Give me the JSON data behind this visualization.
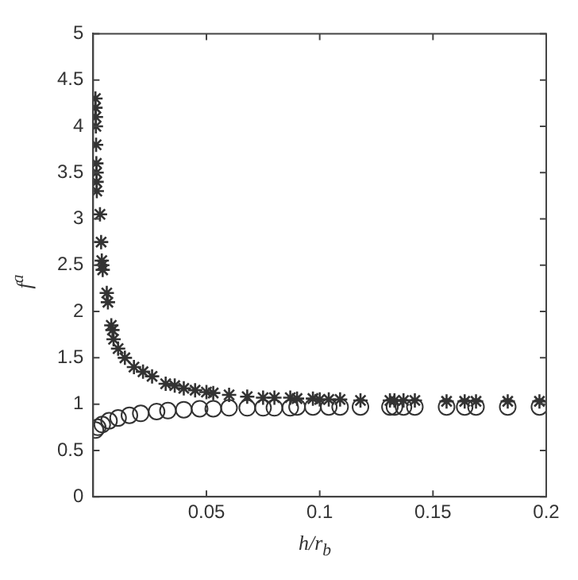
{
  "chart_data": {
    "type": "scatter",
    "xlabel": "h/r$_{b}$",
    "ylabel": "f$^{a}$",
    "xlim": [
      0,
      0.2
    ],
    "ylim": [
      0,
      5
    ],
    "xticks": [
      0.05,
      0.1,
      0.15,
      0.2
    ],
    "yticks": [
      0,
      0.5,
      1,
      1.5,
      2,
      2.5,
      3,
      3.5,
      4,
      4.5,
      5
    ],
    "grid": false,
    "legend": false,
    "series": [
      {
        "color": "#333333",
        "marker": "cross",
        "x": [
          0.001,
          0.001,
          0.0012,
          0.0012,
          0.0013,
          0.0014,
          0.0015,
          0.0015,
          0.0016,
          0.003,
          0.0035,
          0.0038,
          0.004,
          0.0042,
          0.006,
          0.0065,
          0.008,
          0.0085,
          0.009,
          0.011,
          0.014,
          0.018,
          0.022,
          0.026,
          0.032,
          0.036,
          0.04,
          0.045,
          0.05,
          0.053,
          0.06,
          0.068,
          0.075,
          0.08,
          0.087,
          0.09,
          0.097,
          0.1,
          0.104,
          0.109,
          0.118,
          0.131,
          0.133,
          0.137,
          0.142,
          0.156,
          0.164,
          0.169,
          0.183,
          0.197
        ],
        "values": [
          4.3,
          4.2,
          4.1,
          4.0,
          3.8,
          3.6,
          3.5,
          3.4,
          3.3,
          3.05,
          2.75,
          2.55,
          2.5,
          2.45,
          2.2,
          2.1,
          1.85,
          1.8,
          1.7,
          1.6,
          1.5,
          1.4,
          1.35,
          1.3,
          1.22,
          1.2,
          1.17,
          1.15,
          1.13,
          1.12,
          1.1,
          1.08,
          1.07,
          1.07,
          1.07,
          1.06,
          1.06,
          1.05,
          1.05,
          1.05,
          1.04,
          1.04,
          1.04,
          1.04,
          1.04,
          1.03,
          1.03,
          1.03,
          1.03,
          1.03
        ]
      },
      {
        "color": "#333333",
        "marker": "circle",
        "x": [
          0.001,
          0.002,
          0.004,
          0.007,
          0.011,
          0.016,
          0.021,
          0.028,
          0.033,
          0.04,
          0.047,
          0.053,
          0.06,
          0.068,
          0.075,
          0.08,
          0.087,
          0.09,
          0.097,
          0.104,
          0.109,
          0.118,
          0.131,
          0.133,
          0.137,
          0.142,
          0.156,
          0.164,
          0.169,
          0.183,
          0.197
        ],
        "values": [
          0.72,
          0.75,
          0.78,
          0.82,
          0.85,
          0.88,
          0.9,
          0.92,
          0.93,
          0.94,
          0.95,
          0.95,
          0.96,
          0.96,
          0.96,
          0.96,
          0.96,
          0.97,
          0.97,
          0.97,
          0.97,
          0.97,
          0.97,
          0.97,
          0.97,
          0.97,
          0.97,
          0.97,
          0.97,
          0.97,
          0.97
        ]
      }
    ]
  }
}
